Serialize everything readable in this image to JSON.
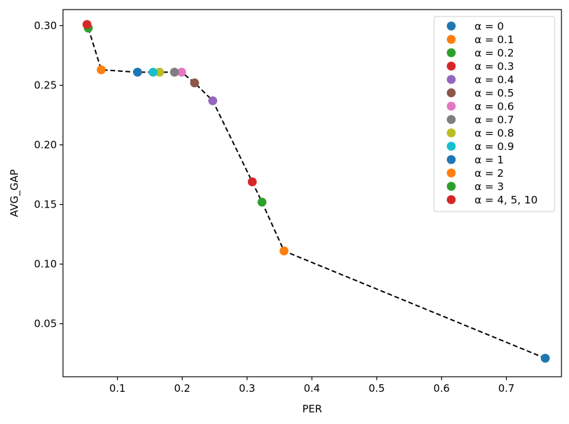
{
  "chart_data": {
    "type": "scatter",
    "xlabel": "PER",
    "ylabel": "AVG_GAP",
    "xlim": [
      0.016,
      0.785
    ],
    "ylim": [
      0.0055,
      0.3135
    ],
    "x_ticks": [
      0.1,
      0.2,
      0.3,
      0.4,
      0.5,
      0.6,
      0.7
    ],
    "x_tick_labels": [
      "0.1",
      "0.2",
      "0.3",
      "0.4",
      "0.5",
      "0.6",
      "0.7"
    ],
    "y_ticks": [
      0.05,
      0.1,
      0.15,
      0.2,
      0.25,
      0.3
    ],
    "y_tick_labels": [
      "0.05",
      "0.10",
      "0.15",
      "0.20",
      "0.25",
      "0.30"
    ],
    "grid": false,
    "legend_position": "top-right",
    "frontier_line": {
      "style": "dashed",
      "color": "#000000",
      "x": [
        0.76,
        0.357,
        0.323,
        0.308,
        0.247,
        0.219,
        0.199,
        0.131,
        0.075,
        0.055,
        0.053
      ],
      "y": [
        0.021,
        0.111,
        0.152,
        0.169,
        0.237,
        0.252,
        0.261,
        0.261,
        0.263,
        0.298,
        0.301
      ]
    },
    "series": [
      {
        "name": "α = 0",
        "color": "#1f77b4",
        "x": [
          0.76
        ],
        "y": [
          0.021
        ]
      },
      {
        "name": "α = 0.1",
        "color": "#ff7f0e",
        "x": [
          0.357
        ],
        "y": [
          0.111
        ]
      },
      {
        "name": "α = 0.2",
        "color": "#2ca02c",
        "x": [
          0.323
        ],
        "y": [
          0.152
        ]
      },
      {
        "name": "α = 0.3",
        "color": "#d62728",
        "x": [
          0.308
        ],
        "y": [
          0.169
        ]
      },
      {
        "name": "α = 0.4",
        "color": "#9467bd",
        "x": [
          0.247
        ],
        "y": [
          0.237
        ]
      },
      {
        "name": "α = 0.5",
        "color": "#8c564b",
        "x": [
          0.219
        ],
        "y": [
          0.252
        ]
      },
      {
        "name": "α = 0.6",
        "color": "#e377c2",
        "x": [
          0.199
        ],
        "y": [
          0.261
        ]
      },
      {
        "name": "α = 0.7",
        "color": "#7f7f7f",
        "x": [
          0.188
        ],
        "y": [
          0.261
        ]
      },
      {
        "name": "α = 0.8",
        "color": "#bcbd22",
        "x": [
          0.165
        ],
        "y": [
          0.261
        ]
      },
      {
        "name": "α = 0.9",
        "color": "#17becf",
        "x": [
          0.155
        ],
        "y": [
          0.261
        ]
      },
      {
        "name": "α = 1",
        "color": "#1f77b4",
        "x": [
          0.131
        ],
        "y": [
          0.261
        ]
      },
      {
        "name": "α = 2",
        "color": "#ff7f0e",
        "x": [
          0.075
        ],
        "y": [
          0.263
        ]
      },
      {
        "name": "α = 3",
        "color": "#2ca02c",
        "x": [
          0.055
        ],
        "y": [
          0.298
        ]
      },
      {
        "name": "α = 4, 5, 10",
        "color": "#d62728",
        "x": [
          0.053
        ],
        "y": [
          0.301
        ]
      }
    ]
  }
}
